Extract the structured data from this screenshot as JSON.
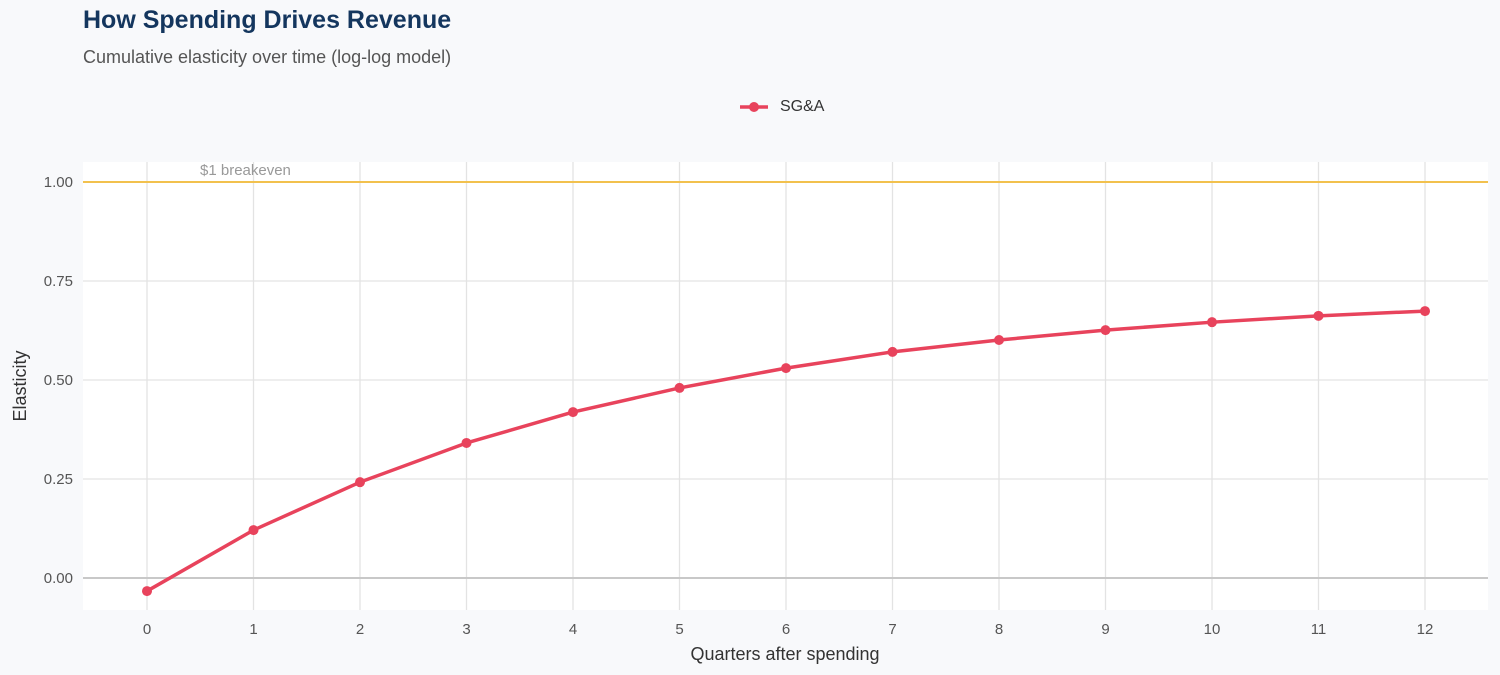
{
  "chart_data": {
    "type": "line",
    "title": "How Spending Drives Revenue",
    "subtitle": "Cumulative elasticity over time (log-log model)",
    "xlabel": "Quarters after spending",
    "ylabel": "Elasticity",
    "x": [
      0,
      1,
      2,
      3,
      4,
      5,
      6,
      7,
      8,
      9,
      10,
      11,
      12
    ],
    "series": [
      {
        "name": "SG&A",
        "color": "#e8435c",
        "values": [
          -0.033,
          0.121,
          0.242,
          0.341,
          0.419,
          0.48,
          0.53,
          0.571,
          0.601,
          0.626,
          0.646,
          0.662,
          0.674
        ]
      }
    ],
    "xlim": [
      -0.6,
      12.6
    ],
    "ylim": [
      -0.08,
      1.05
    ],
    "xticks": [
      "0",
      "1",
      "2",
      "3",
      "4",
      "5",
      "6",
      "7",
      "8",
      "9",
      "10",
      "11",
      "12"
    ],
    "yticks": [
      {
        "v": 0,
        "label": "0.00"
      },
      {
        "v": 0.25,
        "label": "0.25"
      },
      {
        "v": 0.5,
        "label": "0.50"
      },
      {
        "v": 0.75,
        "label": "0.75"
      },
      {
        "v": 1,
        "label": "1.00"
      }
    ],
    "reference_line": {
      "y": 1.0,
      "label": "$1 breakeven",
      "color": "#f2c14e"
    },
    "zero_line_color": "#c8c8c8",
    "grid": true,
    "legend_position": "top"
  }
}
